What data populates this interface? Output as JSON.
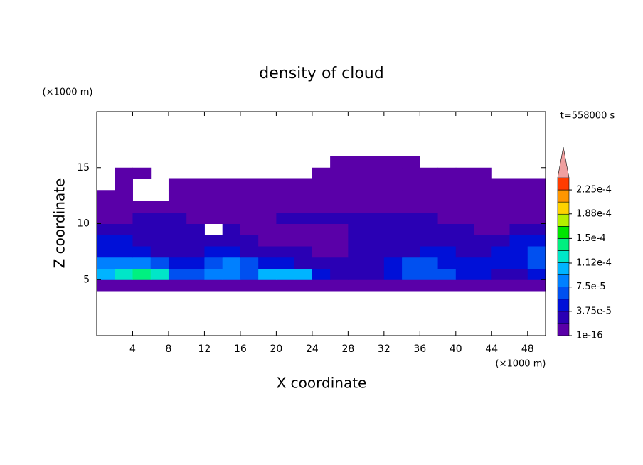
{
  "chart_data": {
    "type": "contour",
    "title": "density of cloud",
    "time_label": "t=558000 s",
    "x_label": "X coordinate",
    "y_label": "Z coordinate",
    "x_unit": "(×1000 m)",
    "y_unit": "(×1000 m)",
    "xlim": [
      0,
      50
    ],
    "ylim": [
      0,
      20
    ],
    "xticks": [
      4,
      8,
      12,
      16,
      20,
      24,
      28,
      32,
      36,
      40,
      44,
      48
    ],
    "yticks": [
      5,
      10,
      15
    ],
    "x": [
      1,
      3,
      5,
      7,
      9,
      11,
      13,
      15,
      17,
      19,
      21,
      23,
      25,
      27,
      29,
      31,
      33,
      35,
      37,
      39,
      41,
      43,
      45,
      47,
      49
    ],
    "y": [
      4.5,
      5.5,
      6.5,
      7.5,
      8.5,
      9.5,
      10.5,
      11.5,
      12.5,
      13.5,
      14.5,
      15.5
    ],
    "z": [
      [
        1e-05,
        1e-05,
        1e-05,
        1e-05,
        1e-05,
        1e-05,
        1e-05,
        1e-05,
        1e-05,
        1e-05,
        1e-05,
        1e-05,
        1e-05,
        1e-05,
        1e-05,
        1e-05,
        1e-05,
        1e-05,
        1e-05,
        1e-05,
        1e-05,
        1e-05,
        1e-05,
        1e-05,
        1e-05
      ],
      [
        0.0001,
        0.00012,
        0.00014,
        0.00012,
        6.5e-05,
        6.5e-05,
        8.5e-05,
        8.5e-05,
        6.5e-05,
        0.0001,
        0.0001,
        0.0001,
        4.5e-05,
        2.5e-05,
        2.5e-05,
        2.5e-05,
        4.5e-05,
        6.5e-05,
        6.5e-05,
        6.5e-05,
        4.5e-05,
        4.5e-05,
        2.5e-05,
        2.5e-05,
        4.5e-05
      ],
      [
        8.5e-05,
        8.5e-05,
        8.5e-05,
        6.5e-05,
        4.5e-05,
        4.5e-05,
        6.5e-05,
        8.5e-05,
        6.5e-05,
        4.5e-05,
        4.5e-05,
        2.5e-05,
        2.5e-05,
        2.5e-05,
        2.5e-05,
        2.5e-05,
        4.5e-05,
        6.5e-05,
        6.5e-05,
        4.5e-05,
        4.5e-05,
        4.5e-05,
        4.5e-05,
        4.5e-05,
        6.5e-05
      ],
      [
        4.5e-05,
        4.5e-05,
        4.5e-05,
        2.5e-05,
        2.5e-05,
        2.5e-05,
        4.5e-05,
        4.5e-05,
        2.5e-05,
        2.5e-05,
        2.5e-05,
        2.5e-05,
        1e-05,
        1e-05,
        2.5e-05,
        2.5e-05,
        2.5e-05,
        2.5e-05,
        4.5e-05,
        4.5e-05,
        2.5e-05,
        2.5e-05,
        4.5e-05,
        4.5e-05,
        6.5e-05
      ],
      [
        4.5e-05,
        4.5e-05,
        2.5e-05,
        2.5e-05,
        2.5e-05,
        2.5e-05,
        2.5e-05,
        2.5e-05,
        2.5e-05,
        1e-05,
        1e-05,
        1e-05,
        1e-05,
        1e-05,
        2.5e-05,
        2.5e-05,
        2.5e-05,
        2.5e-05,
        2.5e-05,
        2.5e-05,
        2.5e-05,
        2.5e-05,
        2.5e-05,
        4.5e-05,
        4.5e-05
      ],
      [
        2.5e-05,
        2.5e-05,
        2.5e-05,
        2.5e-05,
        2.5e-05,
        2.5e-05,
        null,
        2.5e-05,
        1e-05,
        1e-05,
        1e-05,
        1e-05,
        1e-05,
        1e-05,
        2.5e-05,
        2.5e-05,
        2.5e-05,
        2.5e-05,
        2.5e-05,
        2.5e-05,
        2.5e-05,
        1e-05,
        1e-05,
        2.5e-05,
        2.5e-05
      ],
      [
        1e-05,
        1e-05,
        2.5e-05,
        2.5e-05,
        2.5e-05,
        1e-05,
        1e-05,
        1e-05,
        1e-05,
        1e-05,
        2.5e-05,
        2.5e-05,
        2.5e-05,
        2.5e-05,
        2.5e-05,
        2.5e-05,
        2.5e-05,
        2.5e-05,
        2.5e-05,
        1e-05,
        1e-05,
        1e-05,
        1e-05,
        1e-05,
        1e-05
      ],
      [
        1e-05,
        1e-05,
        1e-05,
        1e-05,
        1e-05,
        1e-05,
        1e-05,
        1e-05,
        1e-05,
        1e-05,
        1e-05,
        1e-05,
        1e-05,
        1e-05,
        1e-05,
        1e-05,
        1e-05,
        1e-05,
        1e-05,
        1e-05,
        1e-05,
        1e-05,
        1e-05,
        1e-05,
        1e-05
      ],
      [
        1e-05,
        1e-05,
        null,
        null,
        1e-05,
        1e-05,
        1e-05,
        1e-05,
        1e-05,
        1e-05,
        1e-05,
        1e-05,
        1e-05,
        1e-05,
        1e-05,
        1e-05,
        1e-05,
        1e-05,
        1e-05,
        1e-05,
        1e-05,
        1e-05,
        1e-05,
        1e-05,
        1e-05
      ],
      [
        null,
        1e-05,
        null,
        null,
        1e-05,
        1e-05,
        1e-05,
        1e-05,
        1e-05,
        1e-05,
        1e-05,
        1e-05,
        1e-05,
        1e-05,
        1e-05,
        1e-05,
        1e-05,
        1e-05,
        1e-05,
        1e-05,
        1e-05,
        1e-05,
        1e-05,
        1e-05,
        1e-05
      ],
      [
        null,
        1e-05,
        1e-05,
        null,
        null,
        null,
        null,
        null,
        null,
        null,
        null,
        null,
        1e-05,
        1e-05,
        1e-05,
        1e-05,
        1e-05,
        1e-05,
        1e-05,
        1e-05,
        1e-05,
        1e-05,
        null,
        null,
        null
      ],
      [
        null,
        null,
        null,
        null,
        null,
        null,
        null,
        null,
        null,
        null,
        null,
        null,
        null,
        1e-05,
        1e-05,
        1e-05,
        1e-05,
        1e-05,
        null,
        null,
        null,
        null,
        null,
        null,
        null
      ]
    ],
    "levels": [
      1e-16,
      1.875e-05,
      3.75e-05,
      5.625e-05,
      7.5e-05,
      9.375e-05,
      0.0001125,
      0.00013125,
      0.00015,
      0.00016875,
      0.0001875,
      0.00020625,
      0.000225,
      0.00024375
    ],
    "colors": [
      "#5a00a8",
      "#2a00b4",
      "#0010d8",
      "#0050f0",
      "#0080ff",
      "#00b4ff",
      "#00e6c8",
      "#00f080",
      "#00e600",
      "#b4f000",
      "#ffd200",
      "#ff9600",
      "#ff3c00"
    ],
    "extend_color": "#f0a0a0",
    "colorbar_ticks": [
      {
        "value": 1e-16,
        "label": "1e-16"
      },
      {
        "value": 3.75e-05,
        "label": "3.75e-5"
      },
      {
        "value": 7.5e-05,
        "label": "7.5e-5"
      },
      {
        "value": 0.000112,
        "label": "1.12e-4"
      },
      {
        "value": 0.00015,
        "label": "1.5e-4"
      },
      {
        "value": 0.000188,
        "label": "1.88e-4"
      },
      {
        "value": 0.000225,
        "label": "2.25e-4"
      }
    ]
  }
}
